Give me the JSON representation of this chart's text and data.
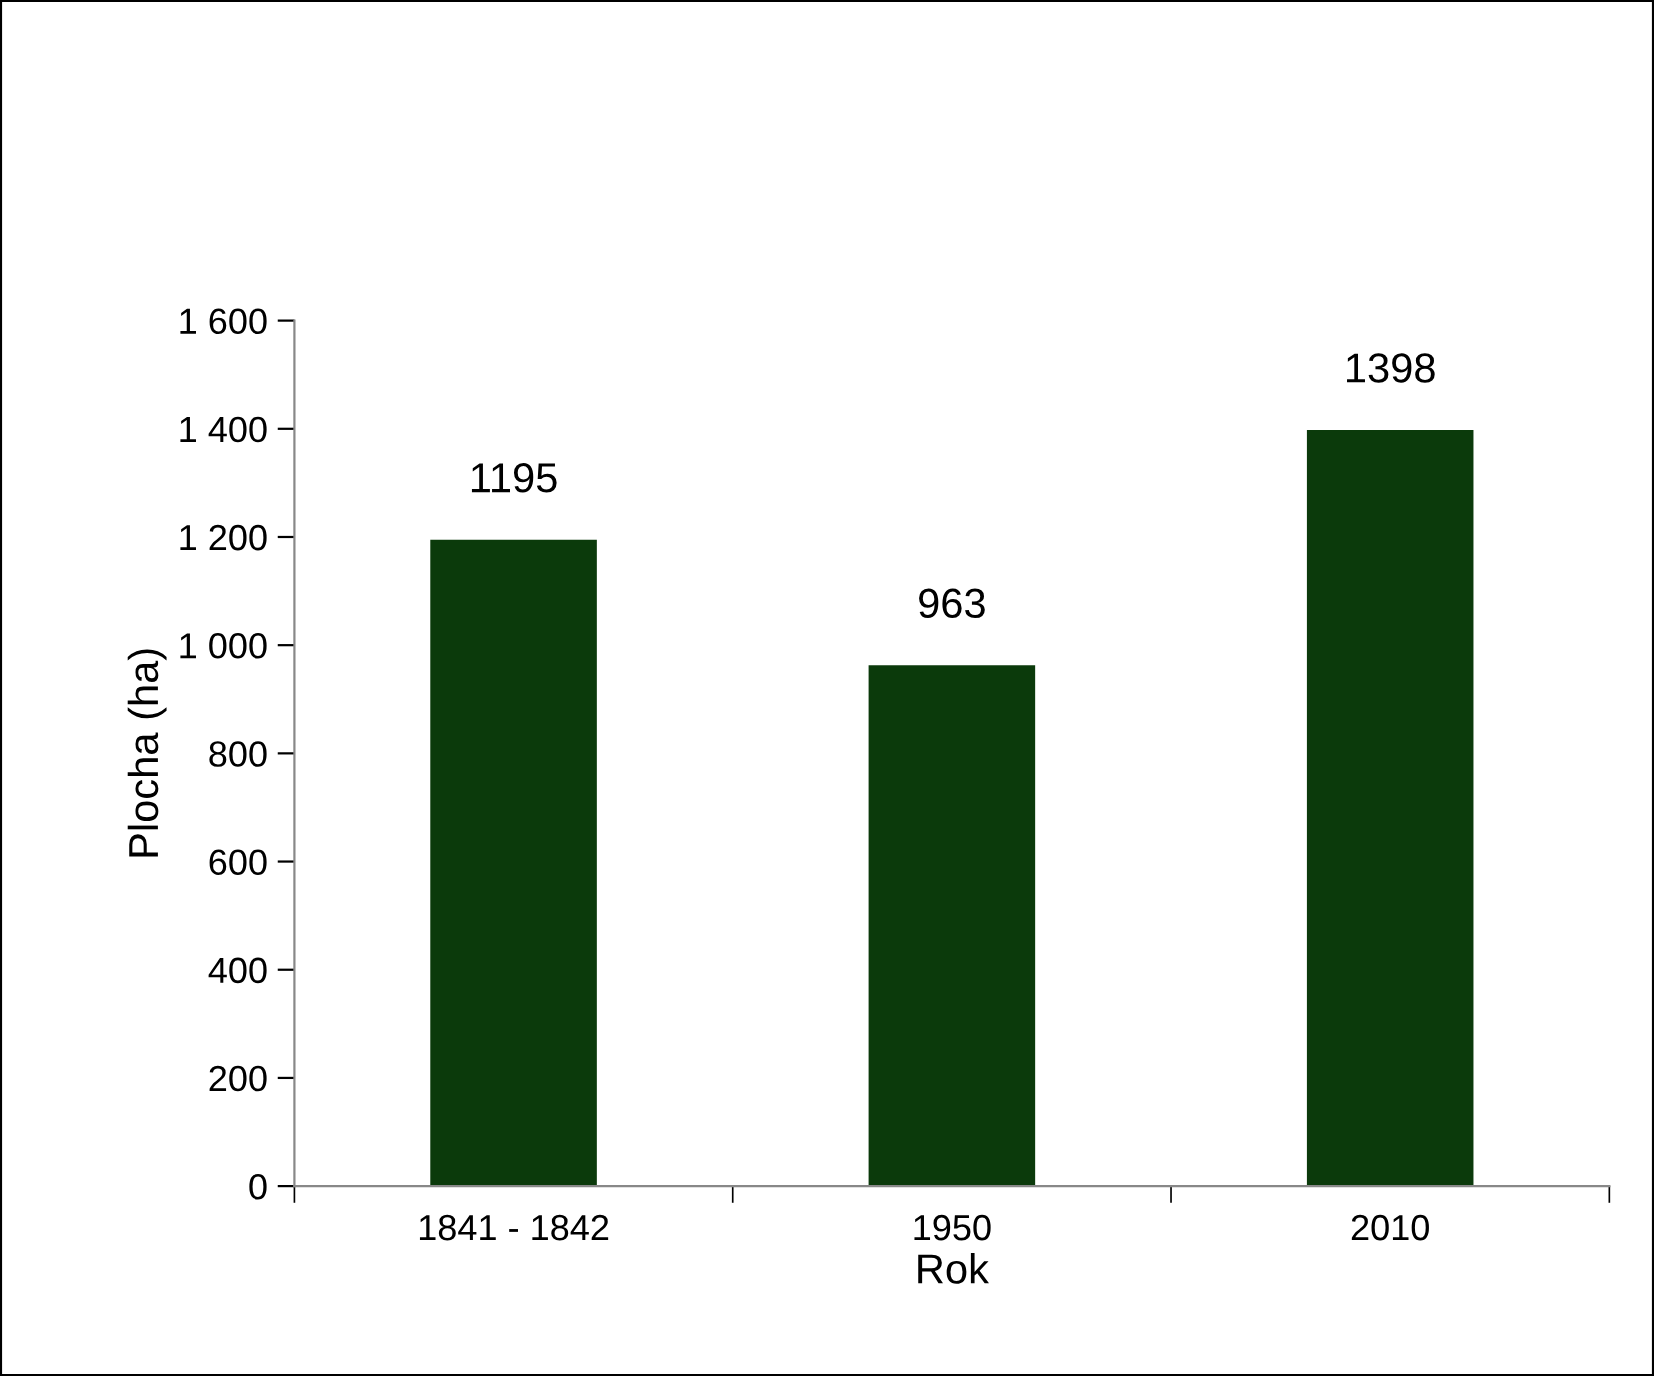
{
  "chart_data": {
    "type": "bar",
    "xlabel": "Rok",
    "ylabel": "Plocha (ha)",
    "categories": [
      "1841 - 1842",
      "1950",
      "2010"
    ],
    "values": [
      1195,
      963,
      1398
    ],
    "color": "#0b3a0b",
    "ylim": [
      0,
      1600
    ],
    "yticks": [
      0,
      200,
      400,
      600,
      800,
      {
        "value": 1000,
        "label": "1 000"
      },
      {
        "value": 1200,
        "label": "1 200"
      },
      {
        "value": 1400,
        "label": "1 400"
      },
      {
        "value": 1600,
        "label": "1 600"
      }
    ],
    "data_labels": true,
    "grid": false,
    "legend": false
  }
}
